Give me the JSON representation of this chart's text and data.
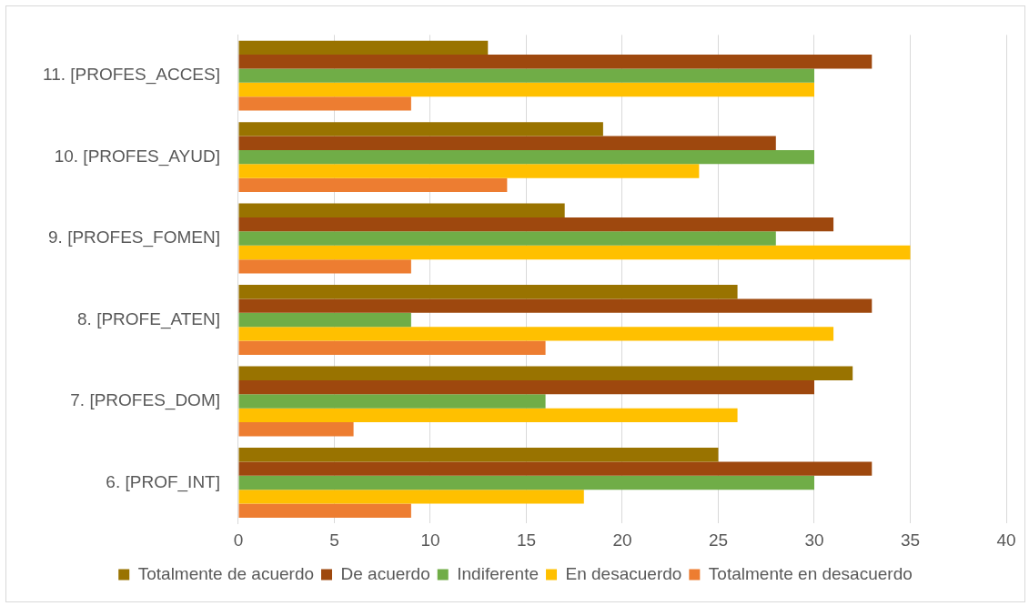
{
  "chart_data": {
    "type": "bar",
    "orientation": "horizontal",
    "categories": [
      "11. [PROFES_ACCES]",
      "10. [PROFES_AYUD]",
      "9. [PROFES_FOMEN]",
      "8. [PROFE_ATEN]",
      "7. [PROFES_DOM]",
      "6. [PROF_INT]"
    ],
    "series": [
      {
        "name": "Totalmente de acuerdo",
        "color": "#997300",
        "values": [
          13,
          19,
          17,
          26,
          32,
          25
        ]
      },
      {
        "name": "De acuerdo",
        "color": "#9e480e",
        "values": [
          33,
          28,
          31,
          33,
          30,
          33
        ]
      },
      {
        "name": "Indiferente",
        "color": "#70ad47",
        "values": [
          30,
          30,
          28,
          9,
          16,
          30
        ]
      },
      {
        "name": "En desacuerdo",
        "color": "#ffc000",
        "values": [
          30,
          24,
          35,
          31,
          26,
          18
        ]
      },
      {
        "name": "Totalmente en desacuerdo",
        "color": "#ed7d31",
        "values": [
          9,
          14,
          9,
          16,
          6,
          9
        ]
      }
    ],
    "xlim": [
      0,
      40
    ],
    "xticks": [
      0,
      5,
      10,
      15,
      20,
      25,
      30,
      35,
      40
    ],
    "grid": "x",
    "legend": "bottom"
  }
}
